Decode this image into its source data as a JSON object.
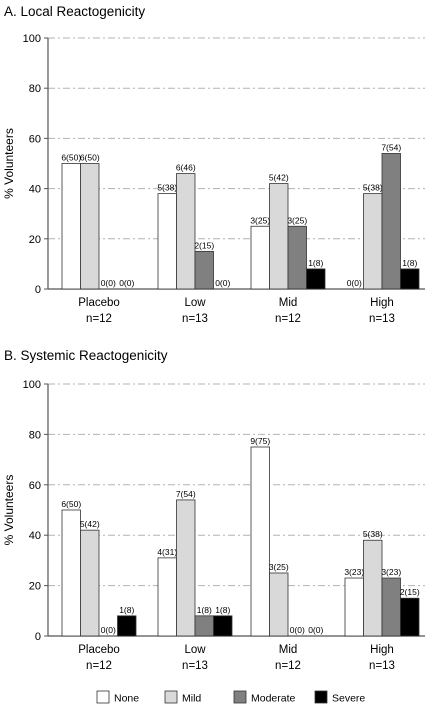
{
  "chart_data": [
    {
      "type": "bar",
      "title": "A. Local Reactogenicity",
      "ylabel": "% Volunteers",
      "ylim": [
        0,
        100
      ],
      "yticks": [
        "0",
        "20",
        "40",
        "60",
        "80",
        "100"
      ],
      "grid": true,
      "categories": [
        "Placebo",
        "Low",
        "Mid",
        "High"
      ],
      "category_sublabels": [
        "n=12",
        "n=13",
        "n=12",
        "n=13"
      ],
      "series": [
        {
          "name": "None",
          "color": "#ffffff",
          "values": [
            50,
            38,
            25,
            0
          ],
          "labels": [
            "6(50)",
            "5(38)",
            "3(25)",
            "0(0)"
          ]
        },
        {
          "name": "Mild",
          "color": "#d9d9d9",
          "values": [
            50,
            46,
            42,
            38
          ],
          "labels": [
            "6(50)",
            "6(46)",
            "5(42)",
            "5(38)"
          ]
        },
        {
          "name": "Moderate",
          "color": "#808080",
          "values": [
            0,
            15,
            25,
            54
          ],
          "labels": [
            "0(0)",
            "2(15)",
            "3(25)",
            "7(54)"
          ]
        },
        {
          "name": "Severe",
          "color": "#000000",
          "values": [
            0,
            0,
            8,
            8
          ],
          "labels": [
            "0(0)",
            "0(0)",
            "1(8)",
            "1(8)"
          ]
        }
      ]
    },
    {
      "type": "bar",
      "title": "B. Systemic Reactogenicity",
      "ylabel": "% Volunteers",
      "ylim": [
        0,
        100
      ],
      "yticks": [
        "0",
        "20",
        "40",
        "60",
        "80",
        "100"
      ],
      "grid": true,
      "categories": [
        "Placebo",
        "Low",
        "Mid",
        "High"
      ],
      "category_sublabels": [
        "n=12",
        "n=13",
        "n=12",
        "n=13"
      ],
      "series": [
        {
          "name": "None",
          "color": "#ffffff",
          "values": [
            50,
            31,
            75,
            23
          ],
          "labels": [
            "6(50)",
            "4(31)",
            "9(75)",
            "3(23)"
          ]
        },
        {
          "name": "Mild",
          "color": "#d9d9d9",
          "values": [
            42,
            54,
            25,
            38
          ],
          "labels": [
            "5(42)",
            "7(54)",
            "3(25)",
            "5(38)"
          ]
        },
        {
          "name": "Moderate",
          "color": "#808080",
          "values": [
            0,
            8,
            0,
            23
          ],
          "labels": [
            "0(0)",
            "1(8)",
            "0(0)",
            "3(23)"
          ]
        },
        {
          "name": "Severe",
          "color": "#000000",
          "values": [
            8,
            8,
            0,
            15
          ],
          "labels": [
            "1(8)",
            "1(8)",
            "0(0)",
            "2(15)"
          ]
        }
      ]
    }
  ],
  "legend": {
    "placement": "bottom-center",
    "items": [
      {
        "name": "None",
        "color": "#ffffff"
      },
      {
        "name": "Mild",
        "color": "#d9d9d9"
      },
      {
        "name": "Moderate",
        "color": "#808080"
      },
      {
        "name": "Severe",
        "color": "#000000"
      }
    ]
  }
}
